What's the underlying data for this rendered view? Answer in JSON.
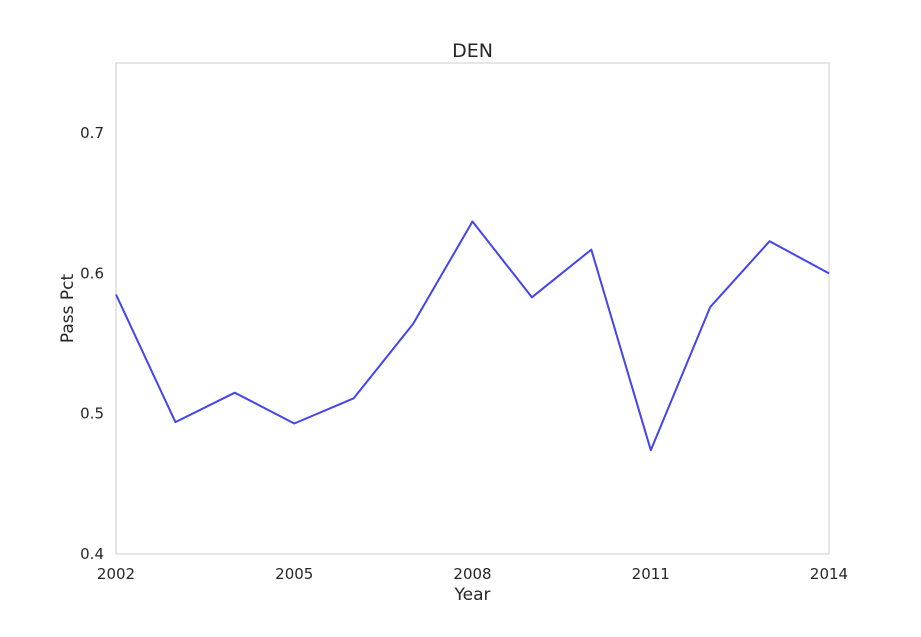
{
  "chart_data": {
    "type": "line",
    "title": "DEN",
    "xlabel": "Year",
    "ylabel": "Pass Pct",
    "xlim": [
      2002,
      2014
    ],
    "ylim": [
      0.4,
      0.75
    ],
    "xticks": [
      2002,
      2005,
      2008,
      2011,
      2014
    ],
    "xtick_labels": [
      "2002",
      "2005",
      "2008",
      "2011",
      "2014"
    ],
    "yticks": [
      0.4,
      0.5,
      0.6,
      0.7
    ],
    "ytick_labels": [
      "0.4",
      "0.5",
      "0.6",
      "0.7"
    ],
    "grid": false,
    "legend": "none",
    "line_color": "#4444ee",
    "series": [
      {
        "x": [
          2002,
          2003,
          2004,
          2005,
          2006,
          2007,
          2008,
          2009,
          2010,
          2011,
          2012,
          2013,
          2014
        ],
        "y": [
          0.585,
          0.494,
          0.515,
          0.493,
          0.511,
          0.564,
          0.637,
          0.583,
          0.617,
          0.474,
          0.576,
          0.623,
          0.6
        ]
      }
    ]
  }
}
